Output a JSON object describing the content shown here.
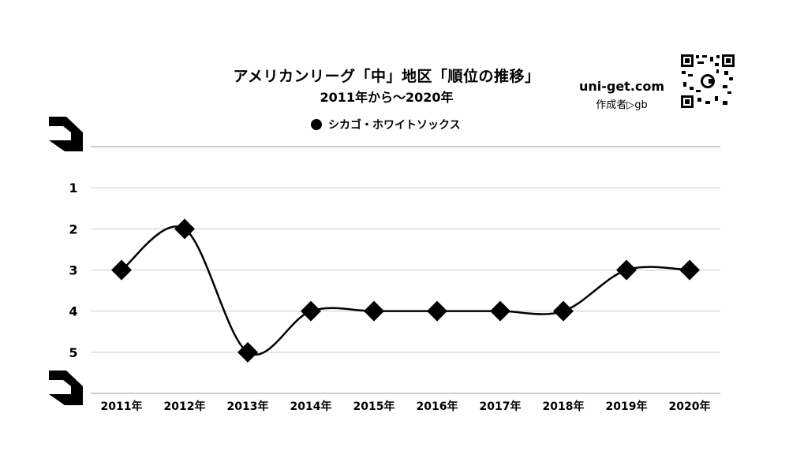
{
  "header": {
    "title": "アメリカンリーグ「中」地区「順位の推移」",
    "subtitle": "2011年から～2020年",
    "site": "uni-get.com",
    "author": "作成者▷gb",
    "qr_icon": "qr-code-icon"
  },
  "colors": {
    "line": "#000000",
    "grid": "#cccccc",
    "marker": "#000000"
  },
  "chart_data": {
    "type": "line",
    "title": "アメリカンリーグ「中」地区「順位の推移」",
    "subtitle": "2011年から～2020年",
    "categories": [
      "2011年",
      "2012年",
      "2013年",
      "2014年",
      "2015年",
      "2016年",
      "2017年",
      "2018年",
      "2019年",
      "2020年"
    ],
    "series": [
      {
        "name": "シカゴ・ホワイトソックス",
        "values": [
          3,
          2,
          5,
          4,
          4,
          4,
          4,
          4,
          3,
          3
        ],
        "marker": "diamond",
        "smooth": true
      }
    ],
    "y_ticks": [
      "1",
      "2",
      "3",
      "4",
      "5"
    ],
    "ylim": [
      0,
      6
    ],
    "y_inverted": true,
    "grid": true,
    "legend": "top"
  }
}
